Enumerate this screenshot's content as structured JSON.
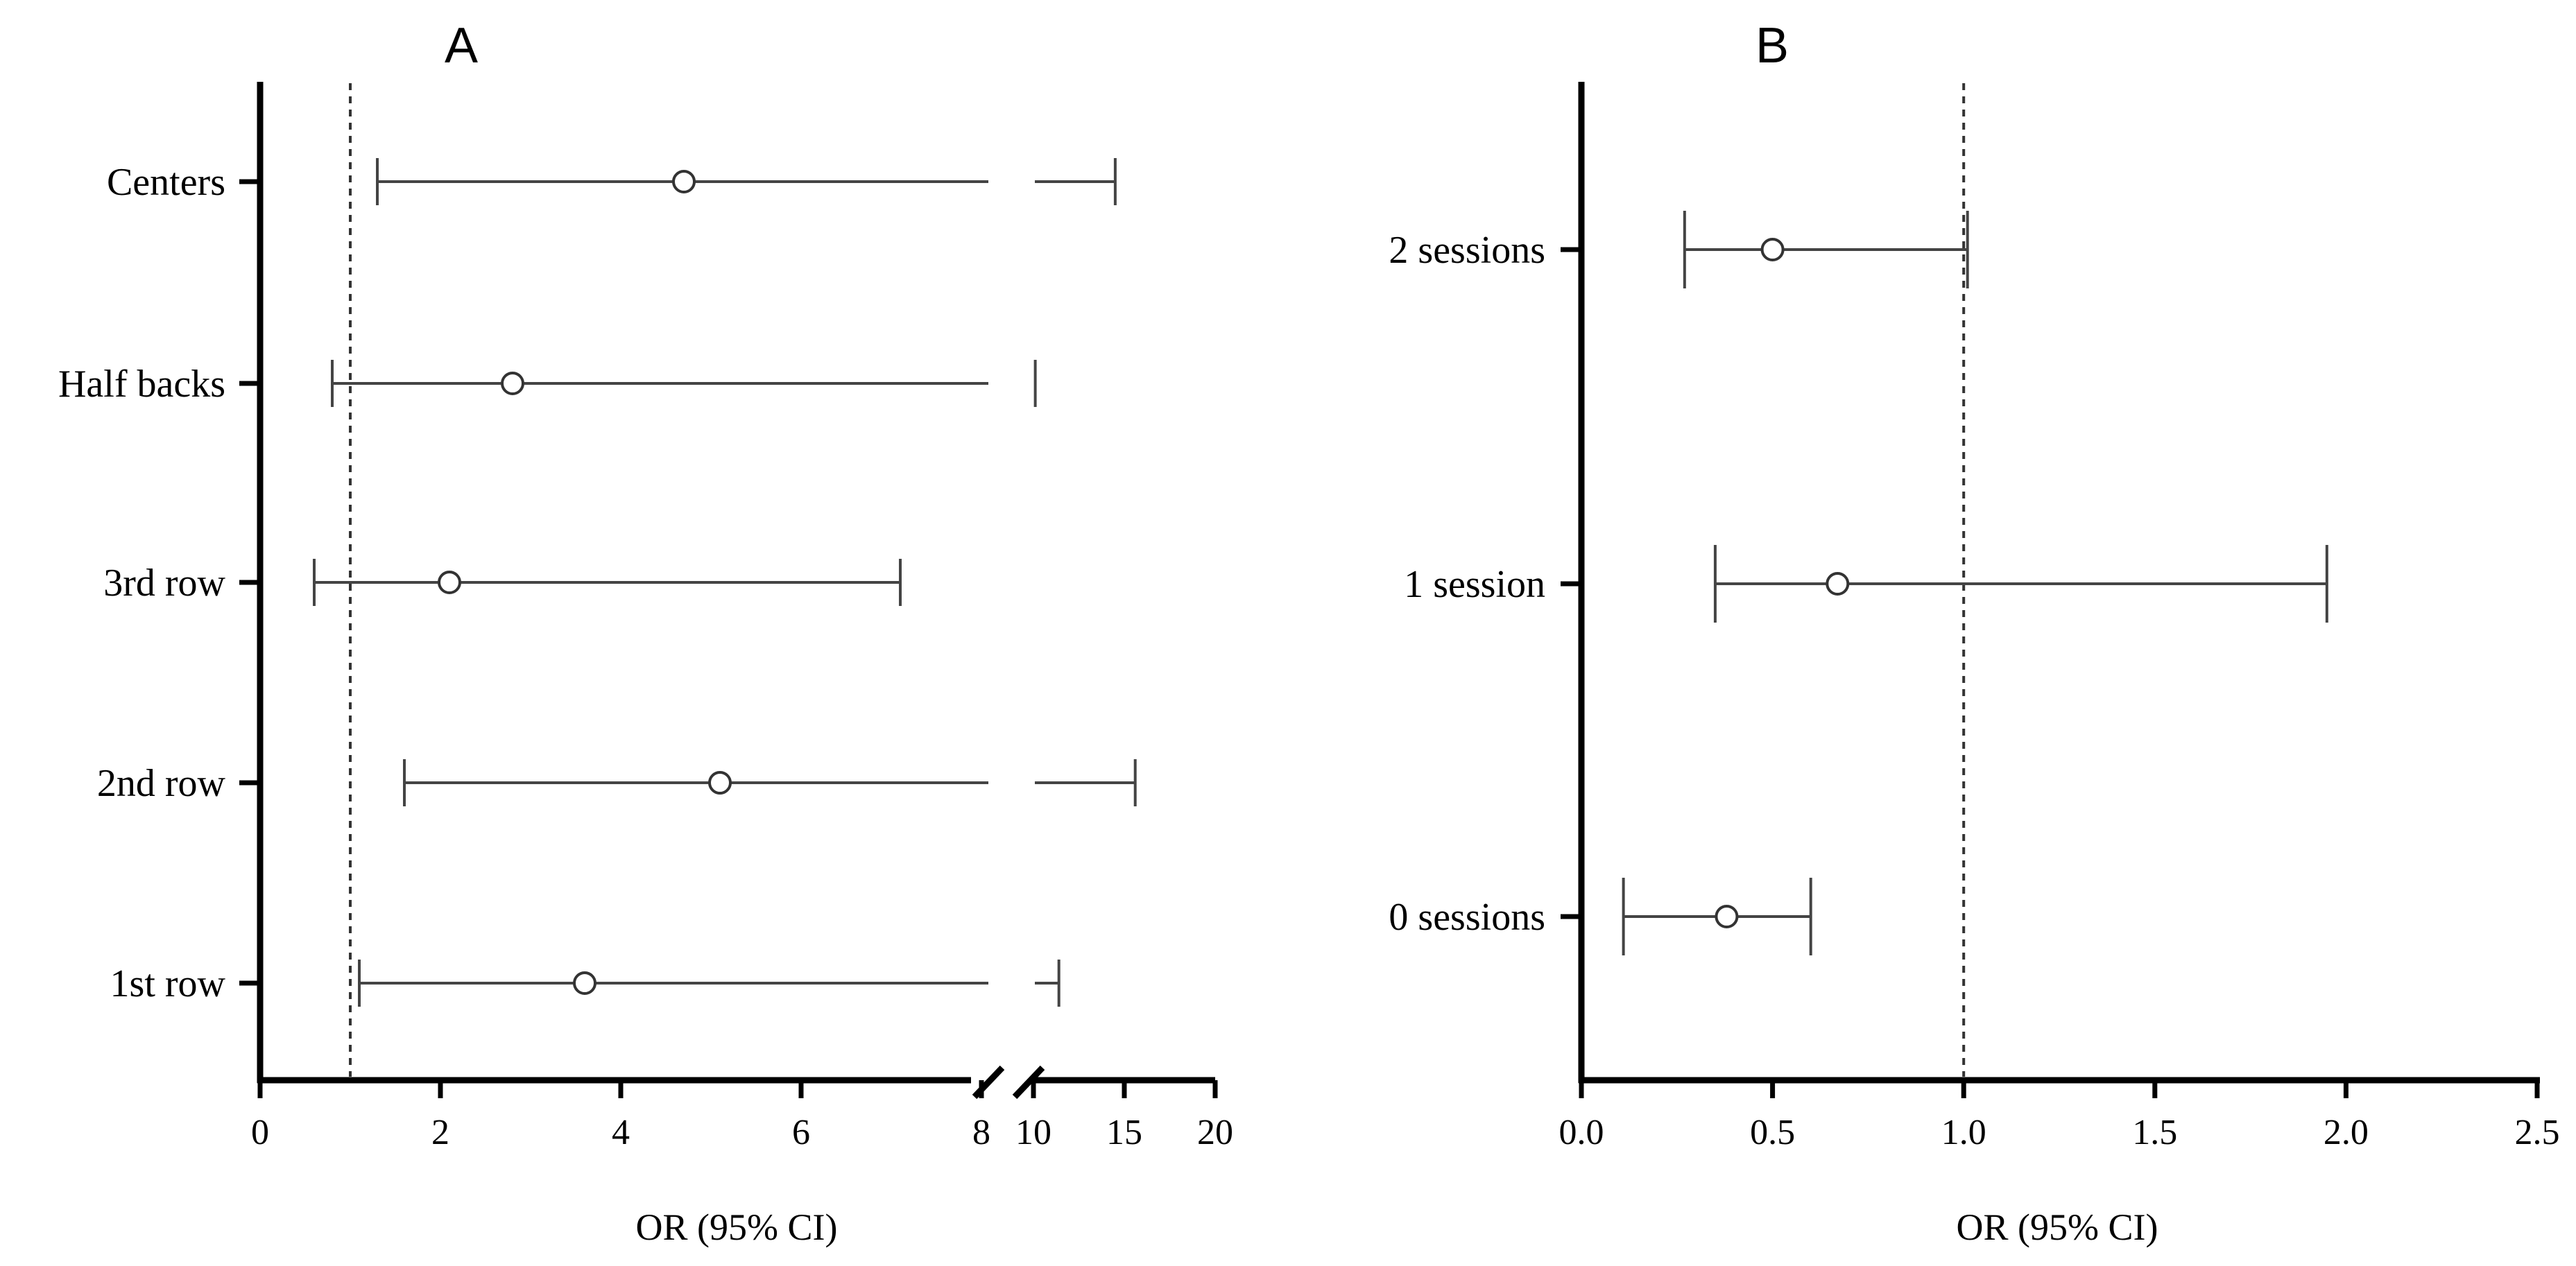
{
  "chart_data": [
    {
      "panel": "A",
      "type": "forest",
      "title": "A",
      "xlabel": "OR (95% CI)",
      "xticks": [
        "0",
        "2",
        "4",
        "6",
        "8",
        "10",
        "15",
        "20"
      ],
      "axis_break": "between 8 and 10",
      "reference_line": 1,
      "rows": [
        {
          "label": "Centers",
          "or": 4.7,
          "lower": 1.3,
          "upper": 14.5
        },
        {
          "label": "Half backs",
          "or": 2.8,
          "lower": 0.8,
          "upper": 10.1
        },
        {
          "label": "3rd row",
          "or": 2.1,
          "lower": 0.6,
          "upper": 7.1
        },
        {
          "label": "2nd row",
          "or": 5.1,
          "lower": 1.6,
          "upper": 15.6
        },
        {
          "label": "1st row",
          "or": 3.6,
          "lower": 1.1,
          "upper": 11.4
        }
      ]
    },
    {
      "panel": "B",
      "type": "forest",
      "title": "B",
      "xlabel": "OR (95% CI)",
      "xticks": [
        "0.0",
        "0.5",
        "1.0",
        "1.5",
        "2.0",
        "2.5"
      ],
      "xlim": [
        0,
        2.5
      ],
      "reference_line": 1.0,
      "rows": [
        {
          "label": "2 sessions",
          "or": 0.5,
          "lower": 0.27,
          "upper": 1.01
        },
        {
          "label": "1 session",
          "or": 0.67,
          "lower": 0.35,
          "upper": 1.95
        },
        {
          "label": "0 sessions",
          "or": 0.38,
          "lower": 0.11,
          "upper": 0.6
        }
      ]
    }
  ]
}
